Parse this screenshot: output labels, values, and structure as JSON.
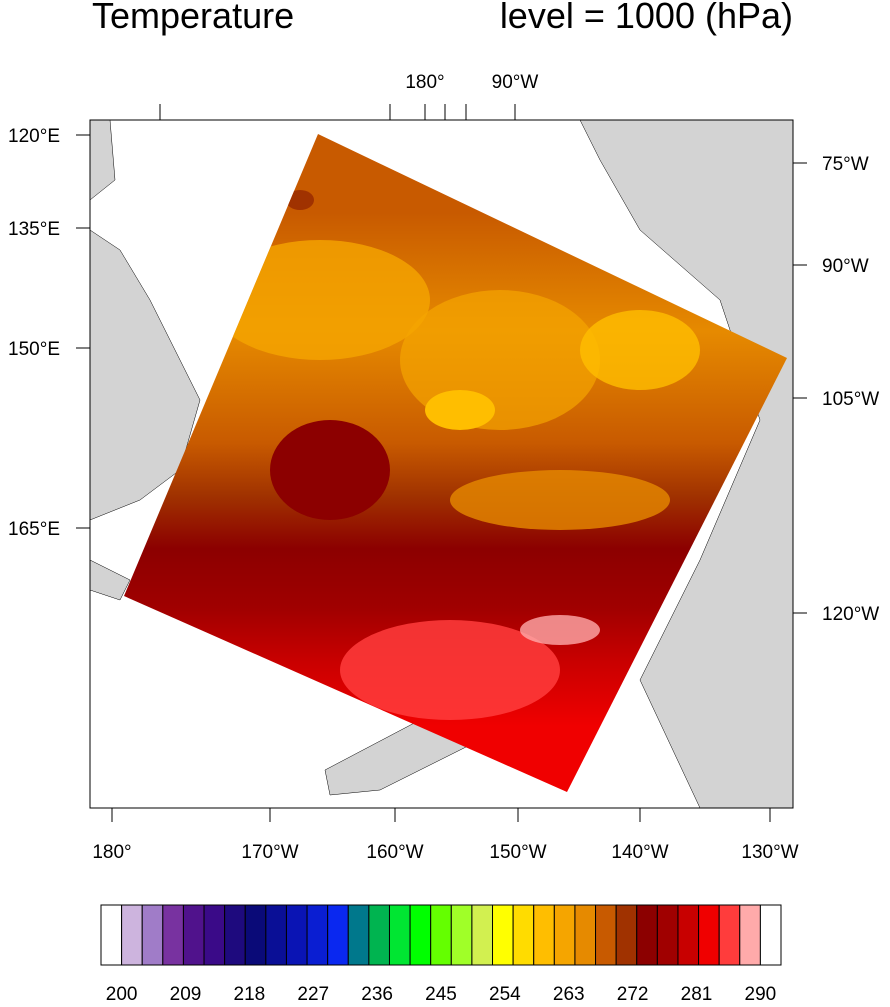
{
  "header": {
    "left_title": "Temperature",
    "right_title": "level = 1000 (hPa)"
  },
  "map": {
    "top_labels": [
      "180°",
      "90°W"
    ],
    "bottom_labels": [
      "180°",
      "170°W",
      "160°W",
      "150°W",
      "140°W",
      "130°W"
    ],
    "left_labels": [
      "120°E",
      "135°E",
      "150°E",
      "165°E"
    ],
    "right_labels": [
      "75°W",
      "90°W",
      "105°W",
      "120°W"
    ]
  },
  "colorbar": {
    "labels": [
      200,
      209,
      218,
      227,
      236,
      245,
      254,
      263,
      272,
      281,
      290
    ],
    "colors": [
      "#ffffff",
      "#cdb4de",
      "#a07cc8",
      "#7832a0",
      "#50128c",
      "#3a0a88",
      "#1e0a7e",
      "#0a0a78",
      "#0a0f96",
      "#0a14b4",
      "#0a1ed2",
      "#0a28f0",
      "#00788c",
      "#00b450",
      "#00e632",
      "#00ff00",
      "#64ff00",
      "#a0ff28",
      "#d2f050",
      "#ffff00",
      "#ffdc00",
      "#ffbe00",
      "#f5a500",
      "#e68a00",
      "#c85a00",
      "#a03200",
      "#8c0000",
      "#a00000",
      "#c80000",
      "#f00000",
      "#ff3c3c",
      "#ffaaaa",
      "#ffffff"
    ]
  }
}
